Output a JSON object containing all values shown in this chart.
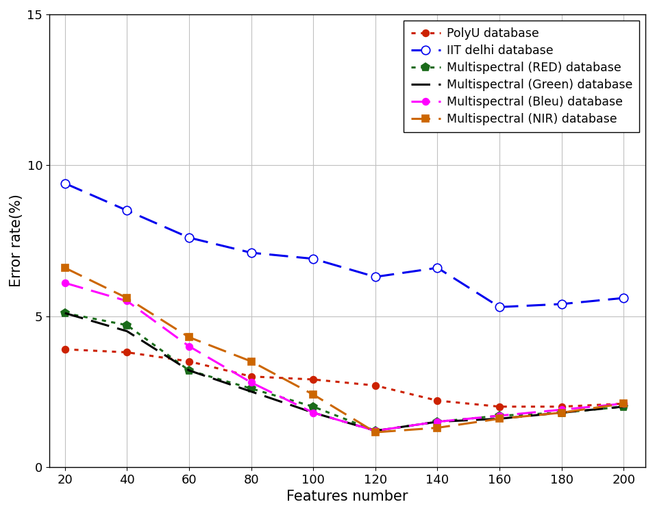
{
  "x": [
    20,
    40,
    60,
    80,
    100,
    120,
    140,
    160,
    180,
    200
  ],
  "series": {
    "PolyU": {
      "y": [
        3.9,
        3.8,
        3.5,
        3.0,
        2.9,
        2.7,
        2.2,
        2.0,
        2.0,
        2.1
      ],
      "color": "#cc2200",
      "linestyle": "dotted",
      "marker": "o",
      "markerfacecolor": "#cc2200",
      "markeredgecolor": "#cc2200",
      "linewidth": 2.2,
      "markersize": 7,
      "label": "PolyU database"
    },
    "IIT": {
      "y": [
        9.4,
        8.5,
        7.6,
        7.1,
        6.9,
        6.3,
        6.6,
        5.3,
        5.4,
        5.6
      ],
      "color": "#0000ee",
      "linestyle": "dashed",
      "marker": "o",
      "markerfacecolor": "#ffffff",
      "markeredgecolor": "#0000ee",
      "linewidth": 2.2,
      "markersize": 9,
      "label": "IIT delhi database"
    },
    "RED": {
      "y": [
        5.1,
        4.7,
        3.2,
        2.6,
        2.0,
        1.2,
        1.5,
        1.7,
        1.8,
        2.0
      ],
      "color": "#1a6b1a",
      "linestyle": "dotted",
      "marker": "p",
      "markerfacecolor": "#1a6b1a",
      "markeredgecolor": "#1a6b1a",
      "linewidth": 2.2,
      "markersize": 9,
      "label": "Multispectral (RED) database"
    },
    "Green": {
      "y": [
        5.1,
        4.5,
        3.2,
        2.5,
        1.8,
        1.2,
        1.5,
        1.6,
        1.8,
        2.0
      ],
      "color": "#000000",
      "linestyle": "dashed",
      "marker": "None",
      "markerfacecolor": "#000000",
      "markeredgecolor": "#000000",
      "linewidth": 2.2,
      "markersize": 0,
      "label": "Multispectral (Green) database"
    },
    "Bleu": {
      "y": [
        6.1,
        5.5,
        4.0,
        2.8,
        1.8,
        1.2,
        1.5,
        1.7,
        1.9,
        2.1
      ],
      "color": "#ff00ff",
      "linestyle": "dashed",
      "marker": "o",
      "markerfacecolor": "#ff00ff",
      "markeredgecolor": "#ff00ff",
      "linewidth": 2.2,
      "markersize": 7,
      "label": "Multispectral (Bleu) database"
    },
    "NIR": {
      "y": [
        6.6,
        5.6,
        4.3,
        3.5,
        2.4,
        1.15,
        1.3,
        1.6,
        1.8,
        2.1
      ],
      "color": "#cc6600",
      "linestyle": "dashed",
      "marker": "s",
      "markerfacecolor": "#cc6600",
      "markeredgecolor": "#cc6600",
      "linewidth": 2.2,
      "markersize": 7,
      "label": "Multispectral (NIR) database"
    }
  },
  "xlabel": "Features number",
  "ylabel": "Error rate(%)",
  "xlim": [
    15,
    207
  ],
  "ylim": [
    0,
    15
  ],
  "xticks": [
    20,
    40,
    60,
    80,
    100,
    120,
    140,
    160,
    180,
    200
  ],
  "yticks": [
    0,
    5,
    10,
    15
  ],
  "grid": true,
  "legend_loc": "upper right",
  "axis_fontsize": 15,
  "tick_fontsize": 13,
  "legend_fontsize": 12.5
}
